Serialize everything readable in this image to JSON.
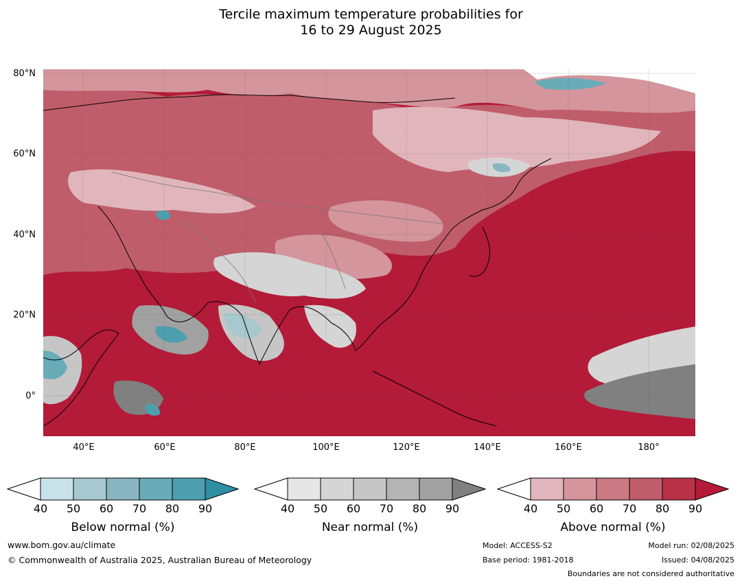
{
  "title": {
    "line1": "Tercile maximum temperature probabilities for",
    "line2": "16 to 29 August 2025"
  },
  "axes": {
    "lat_labels": [
      "80°N",
      "60°N",
      "40°N",
      "20°N",
      "0°"
    ],
    "lon_labels": [
      "40°E",
      "60°E",
      "80°E",
      "100°E",
      "120°E",
      "140°E",
      "160°E",
      "180°"
    ]
  },
  "colorbars": [
    {
      "label": "Below normal (%)",
      "ticks": [
        "40",
        "50",
        "60",
        "70",
        "80",
        "90"
      ],
      "colors": [
        "#c9e1e8",
        "#a8c8cf",
        "#88b5c0",
        "#6aabb8",
        "#4d9fb0",
        "#2f8ea3"
      ]
    },
    {
      "label": "Near normal (%)",
      "ticks": [
        "40",
        "50",
        "60",
        "70",
        "80",
        "90"
      ],
      "colors": [
        "#e6e6e6",
        "#d5d5d5",
        "#c6c6c6",
        "#b4b4b4",
        "#a1a1a1",
        "#808080"
      ]
    },
    {
      "label": "Above normal (%)",
      "ticks": [
        "40",
        "50",
        "60",
        "70",
        "80",
        "90"
      ],
      "colors": [
        "#e0b6bc",
        "#d4959d",
        "#c97a84",
        "#c05d6b",
        "#b83348",
        "#b31b38"
      ]
    }
  ],
  "map_colors": {
    "ocean": "#b31b38",
    "land_high": "#b83348",
    "land_mid": "#c05d6b",
    "land_low": "#d4959d",
    "land_lowest": "#e0b6bc",
    "white": "#ffffff",
    "grey_light": "#d5d5d5",
    "grey_mid": "#a1a1a1",
    "grey_dark": "#808080",
    "blue_light": "#a8c8cf",
    "blue_dark": "#2f8ea3"
  },
  "footer": {
    "website": "www.bom.gov.au/climate",
    "copyright": "© Commonwealth of Australia 2025, Australian Bureau of Meteorology",
    "model": "Model: ACCESS-S2",
    "base_period": "Base period: 1981-2018",
    "model_run": "Model run: 02/08/2025",
    "issued": "Issued: 04/08/2025",
    "disclaimer": "Boundaries are not considered authoritative"
  }
}
